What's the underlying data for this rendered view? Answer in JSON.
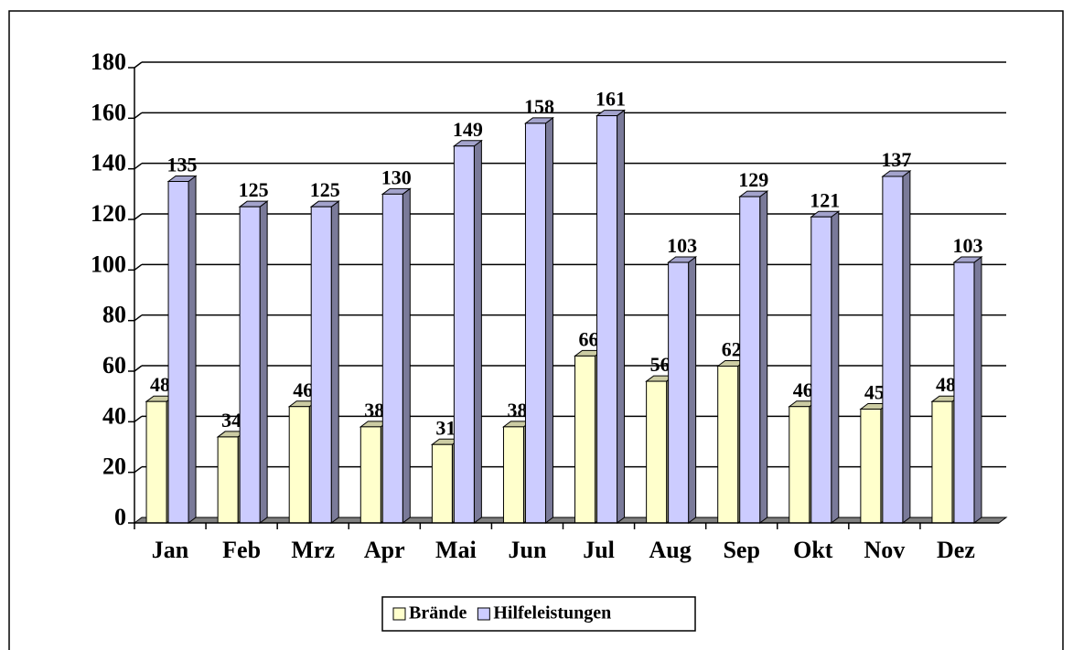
{
  "chart_data": {
    "type": "bar3d",
    "categories": [
      "Jan",
      "Feb",
      "Mrz",
      "Apr",
      "Mai",
      "Jun",
      "Jul",
      "Aug",
      "Sep",
      "Okt",
      "Nov",
      "Dez"
    ],
    "series": [
      {
        "name": "Brände",
        "color": "#ffffcc",
        "values": [
          48,
          34,
          46,
          38,
          31,
          38,
          66,
          56,
          62,
          46,
          45,
          48
        ]
      },
      {
        "name": "Hilfeleistungen",
        "color": "#ccccff",
        "values": [
          135,
          125,
          125,
          130,
          149,
          158,
          161,
          103,
          129,
          121,
          137,
          103
        ]
      }
    ],
    "ylim": [
      0,
      180
    ],
    "yticks": [
      0,
      20,
      40,
      60,
      80,
      100,
      120,
      140,
      160,
      180
    ],
    "grid": true,
    "legend": "bottom"
  }
}
